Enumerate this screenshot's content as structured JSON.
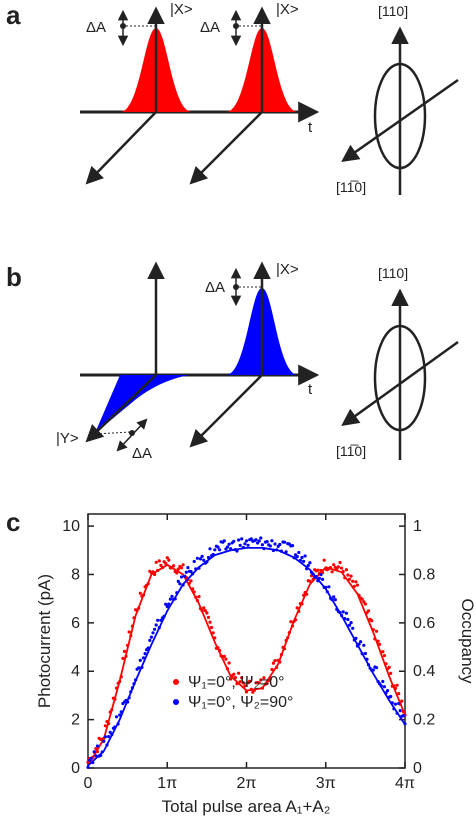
{
  "panel_a": {
    "letter": "a",
    "state_left": "|X>",
    "state_right": "|X>",
    "delta_left": "ΔA",
    "delta_right": "ΔA",
    "time_label": "t",
    "crystal_top": "[110]",
    "crystal_bottom": "[11̅0]",
    "pulse_color": "#ff0000"
  },
  "panel_b": {
    "letter": "b",
    "state_right": "|X>",
    "state_left": "|Y>",
    "delta_top": "ΔA",
    "delta_bottom": "ΔA",
    "time_label": "t",
    "crystal_top": "[110]",
    "crystal_bottom": "[11̅0]",
    "pulse_color": "#0000ff"
  },
  "panel_c": {
    "letter": "c"
  },
  "chart_data": {
    "type": "scatter",
    "xlabel": "Total pulse area A₁+A₂",
    "ylabel_left": "Photocurrent (pA)",
    "ylabel_right": "Occupancy",
    "x_ticks": [
      "0",
      "1π",
      "2π",
      "3π",
      "4π"
    ],
    "y_left_ticks": [
      "0",
      "2",
      "4",
      "6",
      "8",
      "10"
    ],
    "y_right_ticks": [
      "0",
      "0.2",
      "0.4",
      "0.6",
      "0.8",
      "1"
    ],
    "xlim": [
      0,
      4
    ],
    "x_unit": "π",
    "ylim_left": [
      0,
      10.5
    ],
    "ylim_right": [
      0,
      1.05
    ],
    "series": [
      {
        "name": "Ψ₁=0°, Ψ₂=0°",
        "color": "#ff0000",
        "x": [
          0.0,
          0.2,
          0.4,
          0.6,
          0.8,
          1.0,
          1.2,
          1.4,
          1.6,
          1.8,
          2.0,
          2.2,
          2.4,
          2.6,
          2.8,
          3.0,
          3.2,
          3.4,
          3.6,
          3.8,
          4.0
        ],
        "y": [
          0.1,
          1.2,
          3.6,
          6.3,
          8.0,
          8.4,
          8.0,
          6.8,
          5.2,
          3.8,
          3.2,
          3.3,
          4.3,
          6.1,
          7.6,
          8.3,
          8.1,
          7.2,
          5.6,
          3.8,
          2.2
        ]
      },
      {
        "name": "Ψ₁=0°, Ψ₂=90°",
        "color": "#0000ff",
        "x": [
          0.0,
          0.2,
          0.4,
          0.6,
          0.8,
          1.0,
          1.2,
          1.4,
          1.6,
          1.8,
          2.0,
          2.2,
          2.4,
          2.6,
          2.8,
          3.0,
          3.2,
          3.4,
          3.6,
          3.8,
          4.0
        ],
        "y": [
          0.1,
          0.7,
          2.0,
          3.6,
          5.1,
          6.5,
          7.6,
          8.3,
          8.8,
          9.0,
          9.1,
          9.1,
          9.0,
          8.7,
          8.2,
          7.4,
          6.3,
          5.1,
          3.9,
          2.8,
          1.8
        ]
      }
    ],
    "legend_placement": "lower-center",
    "grid": false
  }
}
